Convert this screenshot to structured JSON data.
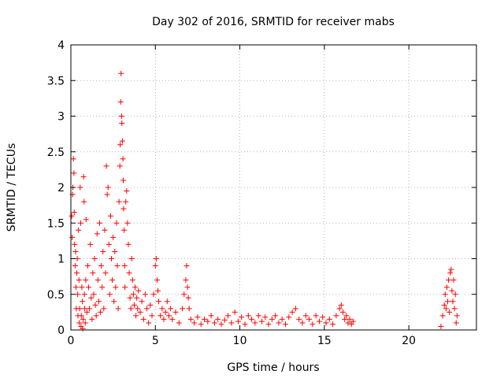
{
  "chart_data": {
    "type": "scatter",
    "title": "Day 302 of 2016, SRMTID for receiver mabs",
    "xlabel": "GPS time / hours",
    "ylabel": "SRMTID / TECUs",
    "xlim": [
      0,
      24
    ],
    "ylim": [
      0,
      4
    ],
    "xticks": [
      0,
      5,
      10,
      15,
      20
    ],
    "xtick_labels": [
      "0",
      "5",
      "10",
      "15",
      "20"
    ],
    "yticks": [
      0,
      0.5,
      1,
      1.5,
      2,
      2.5,
      3,
      3.5,
      4
    ],
    "ytick_labels": [
      "0",
      "0.5",
      "1",
      "1.5",
      "2",
      "2.5",
      "3",
      "3.5",
      "4"
    ],
    "grid": true,
    "marker": "+",
    "color": "#ff0000",
    "series": [
      {
        "name": "SRMTID",
        "points": [
          [
            0.05,
            1.6
          ],
          [
            0.08,
            1.3
          ],
          [
            0.1,
            1.9
          ],
          [
            0.12,
            2.0
          ],
          [
            0.15,
            2.4
          ],
          [
            0.18,
            2.2
          ],
          [
            0.2,
            1.65
          ],
          [
            0.22,
            1.2
          ],
          [
            0.25,
            0.9
          ],
          [
            0.28,
            1.1
          ],
          [
            0.3,
            0.6
          ],
          [
            0.32,
            0.3
          ],
          [
            0.35,
            0.8
          ],
          [
            0.38,
            1.0
          ],
          [
            0.4,
            0.5
          ],
          [
            0.42,
            0.2
          ],
          [
            0.45,
            1.4
          ],
          [
            0.48,
            0.7
          ],
          [
            0.5,
            0.1
          ],
          [
            0.52,
            0.3
          ],
          [
            0.55,
            2.0
          ],
          [
            0.58,
            1.5
          ],
          [
            0.6,
            0.05
          ],
          [
            0.62,
            0.2
          ],
          [
            0.65,
            0.6
          ],
          [
            0.68,
            0.4
          ],
          [
            0.7,
            0.02
          ],
          [
            0.72,
            0.15
          ],
          [
            0.75,
            2.15
          ],
          [
            0.78,
            1.8
          ],
          [
            0.8,
            0.5
          ],
          [
            0.82,
            0.3
          ],
          [
            0.85,
            0.1
          ],
          [
            0.88,
            0.7
          ],
          [
            0.9,
            1.55
          ],
          [
            0.95,
            0.25
          ],
          [
            1.0,
            0.9
          ],
          [
            1.05,
            0.6
          ],
          [
            1.1,
            0.3
          ],
          [
            1.15,
            1.2
          ],
          [
            1.2,
            0.45
          ],
          [
            1.25,
            0.15
          ],
          [
            1.3,
            0.8
          ],
          [
            1.35,
            0.5
          ],
          [
            1.4,
            1.0
          ],
          [
            1.45,
            0.35
          ],
          [
            1.5,
            0.2
          ],
          [
            1.55,
            1.35
          ],
          [
            1.6,
            0.7
          ],
          [
            1.65,
            0.4
          ],
          [
            1.7,
            1.5
          ],
          [
            1.75,
            0.25
          ],
          [
            1.8,
            0.9
          ],
          [
            1.85,
            0.6
          ],
          [
            1.9,
            1.1
          ],
          [
            1.95,
            0.3
          ],
          [
            2.0,
            1.4
          ],
          [
            2.05,
            0.8
          ],
          [
            2.1,
            2.3
          ],
          [
            2.15,
            1.9
          ],
          [
            2.2,
            2.0
          ],
          [
            2.25,
            1.2
          ],
          [
            2.3,
            0.5
          ],
          [
            2.35,
            1.6
          ],
          [
            2.4,
            1.0
          ],
          [
            2.45,
            0.7
          ],
          [
            2.5,
            1.3
          ],
          [
            2.55,
            0.4
          ],
          [
            2.6,
            1.1
          ],
          [
            2.65,
            0.6
          ],
          [
            2.7,
            1.5
          ],
          [
            2.75,
            0.9
          ],
          [
            2.8,
            0.3
          ],
          [
            2.85,
            1.8
          ],
          [
            2.9,
            2.3
          ],
          [
            2.92,
            2.6
          ],
          [
            2.95,
            3.2
          ],
          [
            2.97,
            3.6
          ],
          [
            3.0,
            3.0
          ],
          [
            3.02,
            2.9
          ],
          [
            3.05,
            2.65
          ],
          [
            3.08,
            2.4
          ],
          [
            3.1,
            2.1
          ],
          [
            3.12,
            1.7
          ],
          [
            3.15,
            1.4
          ],
          [
            3.18,
            0.9
          ],
          [
            3.2,
            0.6
          ],
          [
            3.25,
            1.8
          ],
          [
            3.3,
            1.95
          ],
          [
            3.35,
            1.5
          ],
          [
            3.4,
            1.2
          ],
          [
            3.45,
            0.8
          ],
          [
            3.5,
            0.45
          ],
          [
            3.55,
            0.3
          ],
          [
            3.6,
            1.0
          ],
          [
            3.65,
            0.7
          ],
          [
            3.7,
            0.5
          ],
          [
            3.75,
            0.35
          ],
          [
            3.8,
            0.6
          ],
          [
            3.85,
            0.2
          ],
          [
            3.9,
            0.45
          ],
          [
            3.95,
            0.3
          ],
          [
            4.0,
            0.55
          ],
          [
            4.1,
            0.25
          ],
          [
            4.2,
            0.4
          ],
          [
            4.3,
            0.15
          ],
          [
            4.4,
            0.5
          ],
          [
            4.5,
            0.3
          ],
          [
            4.6,
            0.1
          ],
          [
            4.7,
            0.35
          ],
          [
            4.8,
            0.2
          ],
          [
            4.9,
            0.5
          ],
          [
            5.0,
            0.9
          ],
          [
            5.05,
            1.0
          ],
          [
            5.1,
            0.7
          ],
          [
            5.15,
            0.55
          ],
          [
            5.2,
            0.4
          ],
          [
            5.3,
            0.2
          ],
          [
            5.4,
            0.3
          ],
          [
            5.5,
            0.15
          ],
          [
            5.6,
            0.25
          ],
          [
            5.7,
            0.4
          ],
          [
            5.8,
            0.2
          ],
          [
            5.9,
            0.3
          ],
          [
            6.0,
            0.15
          ],
          [
            6.2,
            0.25
          ],
          [
            6.4,
            0.1
          ],
          [
            6.6,
            0.3
          ],
          [
            6.7,
            0.5
          ],
          [
            6.8,
            0.7
          ],
          [
            6.85,
            0.9
          ],
          [
            6.9,
            0.6
          ],
          [
            6.95,
            0.45
          ],
          [
            7.0,
            0.3
          ],
          [
            7.1,
            0.15
          ],
          [
            7.3,
            0.1
          ],
          [
            7.5,
            0.18
          ],
          [
            7.7,
            0.08
          ],
          [
            7.9,
            0.15
          ],
          [
            8.1,
            0.12
          ],
          [
            8.3,
            0.2
          ],
          [
            8.5,
            0.1
          ],
          [
            8.7,
            0.15
          ],
          [
            8.9,
            0.08
          ],
          [
            9.1,
            0.14
          ],
          [
            9.3,
            0.2
          ],
          [
            9.5,
            0.1
          ],
          [
            9.7,
            0.25
          ],
          [
            9.9,
            0.12
          ],
          [
            10.1,
            0.18
          ],
          [
            10.3,
            0.08
          ],
          [
            10.5,
            0.2
          ],
          [
            10.7,
            0.15
          ],
          [
            10.9,
            0.1
          ],
          [
            11.1,
            0.2
          ],
          [
            11.3,
            0.12
          ],
          [
            11.5,
            0.18
          ],
          [
            11.7,
            0.08
          ],
          [
            11.9,
            0.15
          ],
          [
            12.1,
            0.2
          ],
          [
            12.3,
            0.1
          ],
          [
            12.5,
            0.15
          ],
          [
            12.7,
            0.08
          ],
          [
            12.9,
            0.18
          ],
          [
            13.1,
            0.25
          ],
          [
            13.3,
            0.3
          ],
          [
            13.5,
            0.15
          ],
          [
            13.7,
            0.1
          ],
          [
            13.9,
            0.2
          ],
          [
            14.1,
            0.15
          ],
          [
            14.3,
            0.08
          ],
          [
            14.5,
            0.2
          ],
          [
            14.7,
            0.12
          ],
          [
            14.9,
            0.18
          ],
          [
            15.1,
            0.1
          ],
          [
            15.3,
            0.15
          ],
          [
            15.5,
            0.08
          ],
          [
            15.7,
            0.2
          ],
          [
            15.9,
            0.3
          ],
          [
            16.0,
            0.35
          ],
          [
            16.1,
            0.25
          ],
          [
            16.2,
            0.15
          ],
          [
            16.3,
            0.2
          ],
          [
            16.4,
            0.1
          ],
          [
            16.5,
            0.15
          ],
          [
            16.6,
            0.08
          ],
          [
            16.7,
            0.12
          ],
          [
            21.9,
            0.05
          ],
          [
            22.0,
            0.2
          ],
          [
            22.1,
            0.35
          ],
          [
            22.15,
            0.5
          ],
          [
            22.2,
            0.3
          ],
          [
            22.25,
            0.6
          ],
          [
            22.3,
            0.4
          ],
          [
            22.35,
            0.7
          ],
          [
            22.4,
            0.25
          ],
          [
            22.45,
            0.8
          ],
          [
            22.5,
            0.85
          ],
          [
            22.55,
            0.55
          ],
          [
            22.6,
            0.4
          ],
          [
            22.65,
            0.7
          ],
          [
            22.7,
            0.3
          ],
          [
            22.75,
            0.5
          ],
          [
            22.8,
            0.1
          ],
          [
            22.85,
            0.2
          ]
        ]
      }
    ]
  }
}
